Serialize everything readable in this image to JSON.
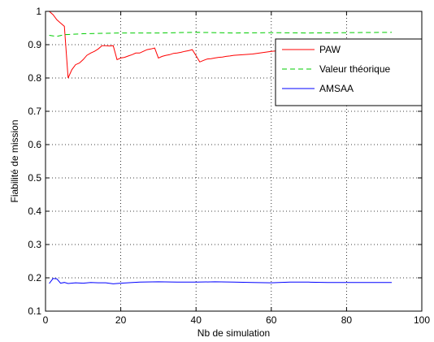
{
  "chart_data": {
    "type": "line",
    "title": "",
    "xlabel": "Nb de simulation",
    "ylabel": "Fiabilité de mission",
    "xlim": [
      0,
      100
    ],
    "ylim": [
      0.1,
      1
    ],
    "xticks": [
      "0",
      "20",
      "40",
      "60",
      "80",
      "100"
    ],
    "yticks": [
      "0.1",
      "0.2",
      "0.3",
      "0.4",
      "0.5",
      "0.6",
      "0.7",
      "0.8",
      "0.9",
      "1"
    ],
    "grid": true,
    "legend_position": "top-right",
    "series": [
      {
        "name": "PAW",
        "color": "#ff0000",
        "dash": "solid",
        "x": [
          1,
          2,
          3,
          4,
          5,
          6,
          7,
          8,
          9,
          10,
          11,
          12,
          13,
          14,
          15,
          16,
          17,
          18,
          19,
          20,
          21,
          22,
          23,
          24,
          25,
          26,
          27,
          28,
          29,
          30,
          31,
          32,
          33,
          34,
          35,
          36,
          37,
          38,
          39,
          40,
          41,
          42,
          43,
          44,
          45,
          46,
          47,
          48,
          49,
          50,
          55,
          60,
          65,
          70,
          75,
          80,
          85,
          90,
          92
        ],
        "y": [
          1.0,
          0.99,
          0.975,
          0.965,
          0.955,
          0.8,
          0.825,
          0.84,
          0.845,
          0.855,
          0.868,
          0.875,
          0.88,
          0.887,
          0.897,
          0.897,
          0.896,
          0.897,
          0.855,
          0.86,
          0.862,
          0.866,
          0.87,
          0.875,
          0.875,
          0.88,
          0.885,
          0.887,
          0.89,
          0.86,
          0.865,
          0.868,
          0.87,
          0.874,
          0.875,
          0.877,
          0.88,
          0.882,
          0.885,
          0.867,
          0.848,
          0.853,
          0.857,
          0.858,
          0.86,
          0.862,
          0.863,
          0.865,
          0.866,
          0.868,
          0.872,
          0.88,
          0.885,
          0.89,
          0.896,
          0.902,
          0.905,
          0.908,
          0.91
        ]
      },
      {
        "name": "Valeur théorique",
        "color": "#00cc00",
        "dash": "dashed",
        "x": [
          1,
          3,
          5,
          10,
          20,
          30,
          40,
          50,
          60,
          70,
          80,
          92
        ],
        "y": [
          0.928,
          0.925,
          0.93,
          0.933,
          0.935,
          0.935,
          0.937,
          0.935,
          0.936,
          0.935,
          0.936,
          0.937
        ]
      },
      {
        "name": "AMSAA",
        "color": "#0000ff",
        "dash": "solid",
        "x": [
          1,
          2,
          3,
          4,
          5,
          6,
          8,
          10,
          12,
          14,
          16,
          18,
          20,
          25,
          30,
          35,
          40,
          45,
          50,
          55,
          60,
          65,
          70,
          75,
          80,
          85,
          92
        ],
        "y": [
          0.183,
          0.198,
          0.197,
          0.184,
          0.186,
          0.183,
          0.185,
          0.184,
          0.186,
          0.185,
          0.185,
          0.182,
          0.184,
          0.187,
          0.188,
          0.187,
          0.187,
          0.188,
          0.187,
          0.186,
          0.185,
          0.187,
          0.187,
          0.186,
          0.186,
          0.186,
          0.186
        ]
      }
    ]
  }
}
